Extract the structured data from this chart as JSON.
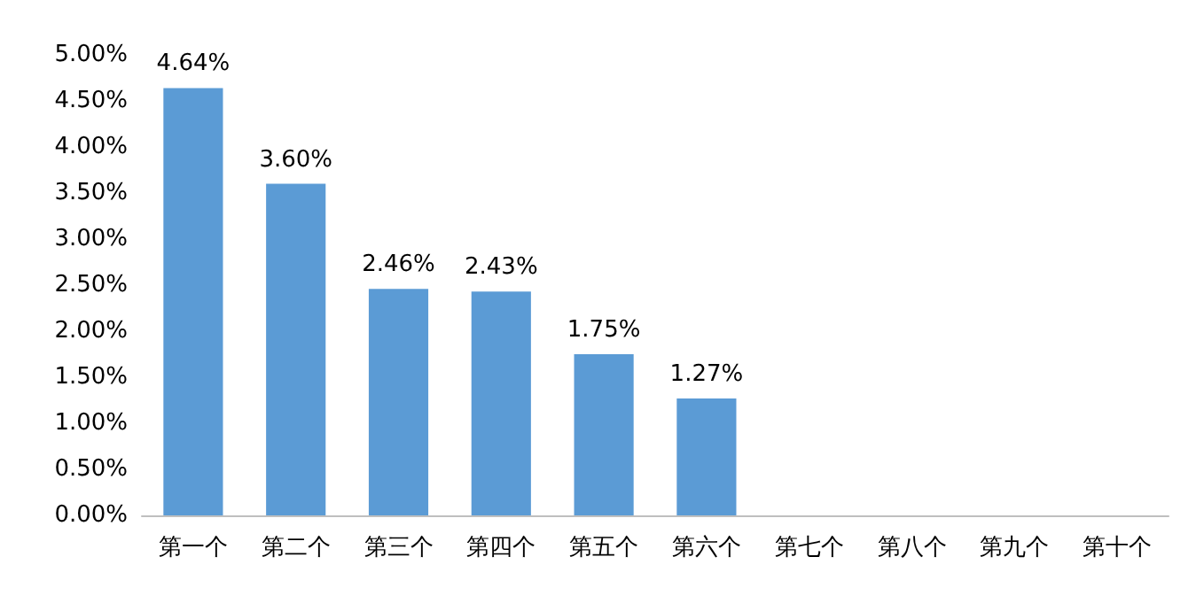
{
  "chart_data": {
    "type": "bar",
    "categories": [
      "第一个",
      "第二个",
      "第三个",
      "第四个",
      "第五个",
      "第六个",
      "第七个",
      "第八个",
      "第九个",
      "第十个"
    ],
    "values": [
      4.64,
      3.6,
      2.46,
      2.43,
      1.75,
      1.27,
      null,
      null,
      null,
      null
    ],
    "value_labels": [
      "4.64%",
      "3.60%",
      "2.46%",
      "2.43%",
      "1.75%",
      "1.27%",
      null,
      null,
      null,
      null
    ],
    "color": "#5b9bd5",
    "ylim": [
      0,
      5
    ],
    "yticks": [
      {
        "value": 0,
        "label": "0.00%"
      },
      {
        "value": 0.5,
        "label": "0.50%"
      },
      {
        "value": 1,
        "label": "1.00%"
      },
      {
        "value": 1.5,
        "label": "1.50%"
      },
      {
        "value": 2,
        "label": "2.00%"
      },
      {
        "value": 2.5,
        "label": "2.50%"
      },
      {
        "value": 3,
        "label": "3.00%"
      },
      {
        "value": 3.5,
        "label": "3.50%"
      },
      {
        "value": 4,
        "label": "4.00%"
      },
      {
        "value": 4.5,
        "label": "4.50%"
      },
      {
        "value": 5,
        "label": "5.00%"
      }
    ],
    "grid": false
  }
}
